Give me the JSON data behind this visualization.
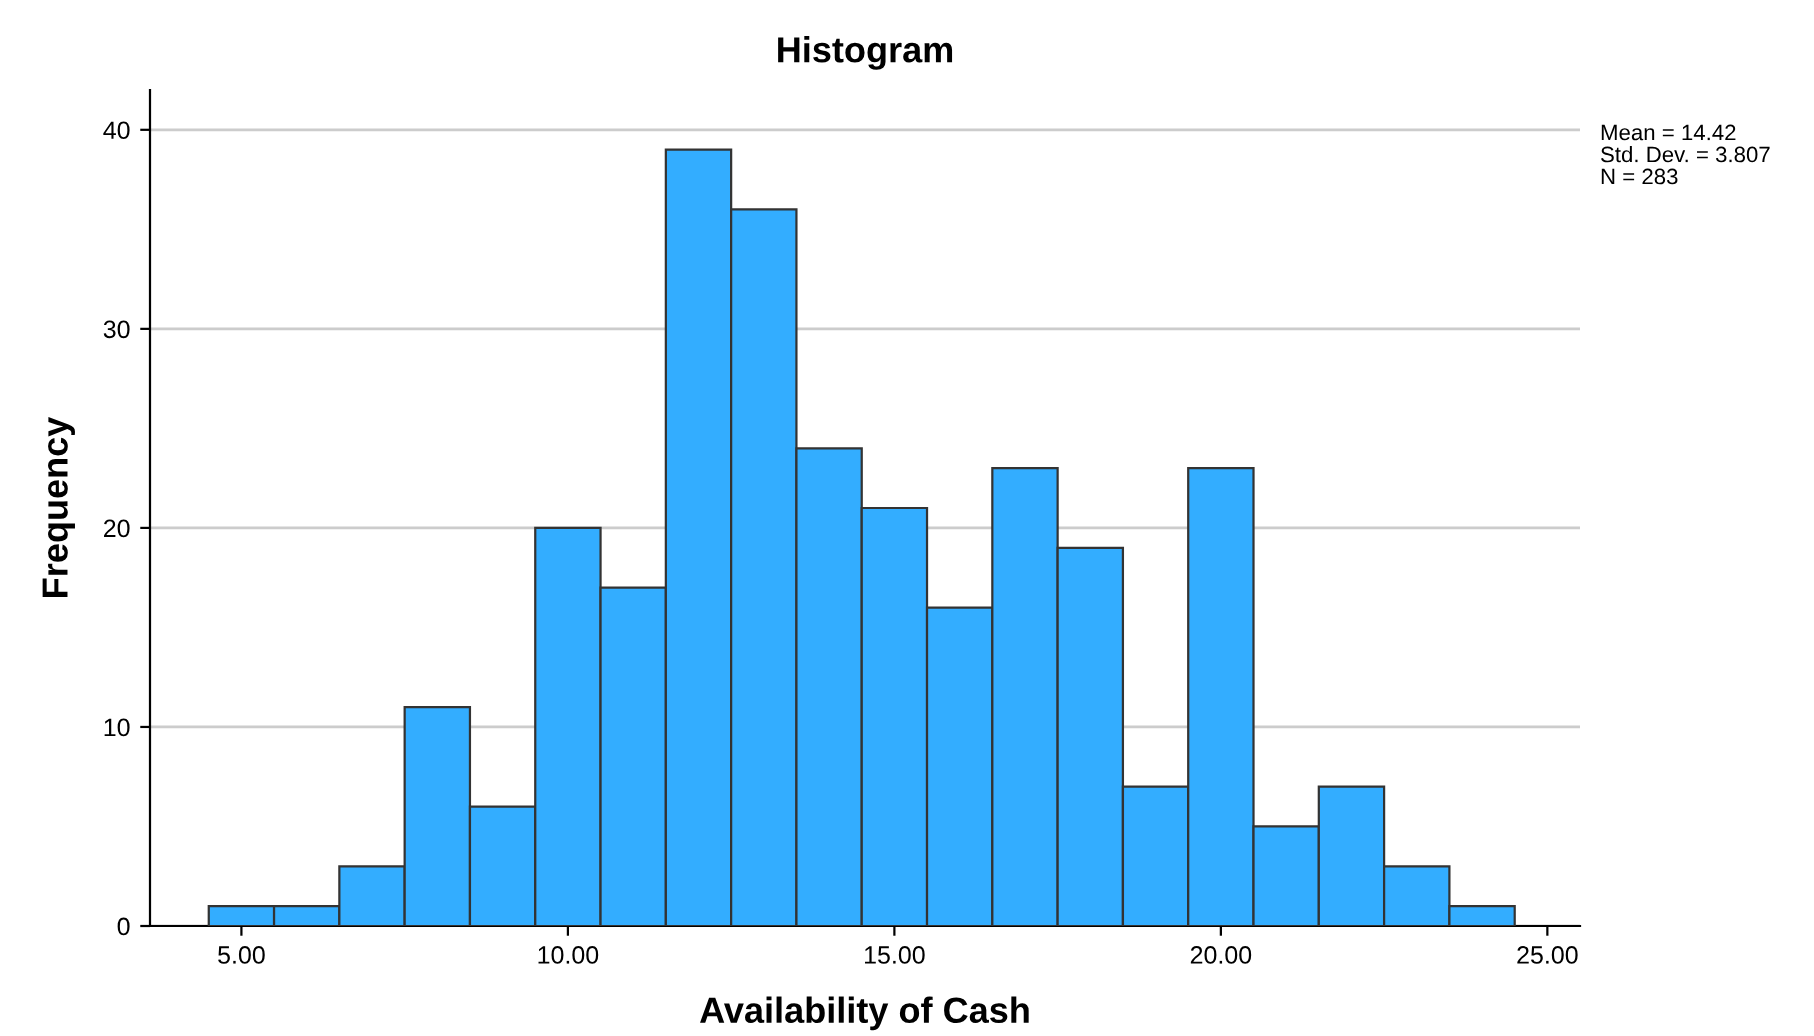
{
  "chart_data": {
    "type": "histogram",
    "title": "Histogram",
    "xlabel": "Availability of Cash",
    "ylabel": "Frequency",
    "bins": [
      4.5,
      5.5,
      6.5,
      7.5,
      8.5,
      9.5,
      10.5,
      11.5,
      12.5,
      13.5,
      14.5,
      15.5,
      16.5,
      17.5,
      18.5,
      19.5,
      20.5,
      21.5,
      22.5,
      23.5,
      24.5
    ],
    "values": [
      1,
      1,
      3,
      11,
      6,
      20,
      17,
      39,
      36,
      24,
      21,
      16,
      23,
      19,
      7,
      23,
      5,
      7,
      3,
      1
    ],
    "color": "#33adff",
    "xlim": [
      3.6,
      25.5
    ],
    "xticks": [
      {
        "value": 5,
        "label": "5.00"
      },
      {
        "value": 10,
        "label": "10.00"
      },
      {
        "value": 15,
        "label": "15.00"
      },
      {
        "value": 20,
        "label": "20.00"
      },
      {
        "value": 25,
        "label": "25.00"
      }
    ],
    "ylim": [
      0,
      42
    ],
    "yticks": [
      0,
      10,
      20,
      30,
      40
    ],
    "grid": "y",
    "annotations": [
      "Mean = 14.42",
      "Std. Dev. = 3.807",
      "N = 283"
    ]
  }
}
